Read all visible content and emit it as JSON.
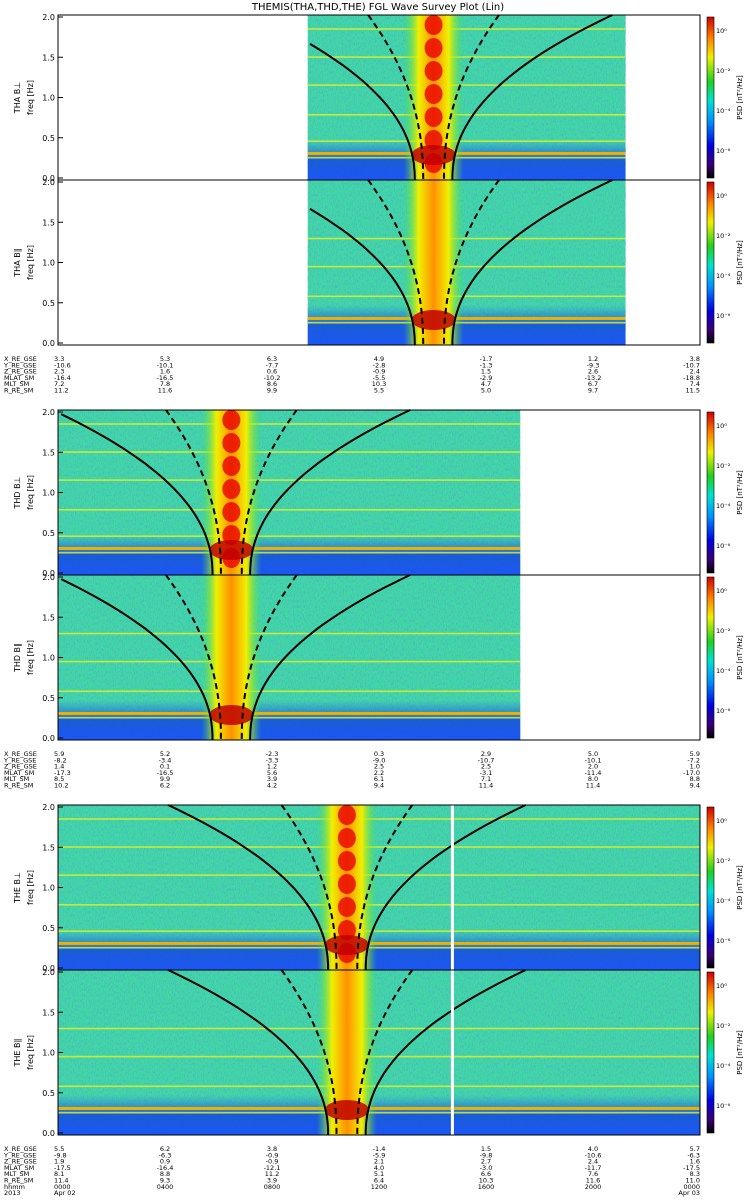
{
  "title": "THEMIS(THA,THD,THE) FGL Wave Survey Plot (Lin)",
  "colorbar": {
    "label": "PSD [nT²/Hz]",
    "tick_labels": [
      "10⁰",
      "10⁻²",
      "10⁻⁴",
      "10⁻⁶"
    ]
  },
  "chart_data": [
    {
      "type": "heatmap",
      "probe": "THA",
      "panels": [
        {
          "ylabel": "THA B⊥",
          "ylabel2": "freq [Hz]",
          "data_start_frac": 0.389,
          "data_end_frac": 0.884
        },
        {
          "ylabel": "THA B∥",
          "ylabel2": "freq [Hz]",
          "data_start_frac": 0.389,
          "data_end_frac": 0.884
        }
      ],
      "y_ticks": [
        "0.0",
        "0.5",
        "1.0",
        "1.5",
        "2.0"
      ],
      "ylim": [
        0,
        2
      ],
      "ephemeris": {
        "labels": [
          "X_RE_GSE",
          "Y_RE_GSE",
          "Z_RE_GSE",
          "MLAT_SM",
          "MLT_SM",
          "R_RE_SM"
        ],
        "columns": [
          [
            "3.3",
            "-10.6",
            "2.3",
            "-16.4",
            "7.2",
            "11.2"
          ],
          [
            "5.3",
            "-10.1",
            "1.6",
            "-16.5",
            "7.8",
            "11.6"
          ],
          [
            "6.3",
            "-7.7",
            "0.6",
            "-10.2",
            "8.6",
            "9.9"
          ],
          [
            "4.9",
            "-2.8",
            "-0.9",
            "-5.5",
            "10.3",
            "5.5"
          ],
          [
            "-1.7",
            "-1.3",
            "1.5",
            "-2.9",
            "4.7",
            "5.0"
          ],
          [
            "1.2",
            "-9.3",
            "2.6",
            "-13.2",
            "6.7",
            "9.7"
          ],
          [
            "3.8",
            "-10.7",
            "2.4",
            "-18.8",
            "7.4",
            "11.5"
          ]
        ]
      }
    },
    {
      "type": "heatmap",
      "probe": "THD",
      "panels": [
        {
          "ylabel": "THD B⊥",
          "ylabel2": "freq [Hz]",
          "data_start_frac": 0.0,
          "data_end_frac": 0.72
        },
        {
          "ylabel": "THD B∥",
          "ylabel2": "freq [Hz]",
          "data_start_frac": 0.0,
          "data_end_frac": 0.72
        }
      ],
      "y_ticks": [
        "0.0",
        "0.5",
        "1.0",
        "1.5",
        "2.0"
      ],
      "ylim": [
        0,
        2
      ],
      "ephemeris": {
        "labels": [
          "X_RE_GSE",
          "Y_RE_GSE",
          "Z_RE_GSE",
          "MLAT_SM",
          "MLT_SM",
          "R_RE_SM"
        ],
        "columns": [
          [
            "5.9",
            "-8.2",
            "1.4",
            "-17.3",
            "8.5",
            "10.2"
          ],
          [
            "5.2",
            "-3.4",
            "0.1",
            "-16.5",
            "9.9",
            "6.2"
          ],
          [
            "-2.3",
            "-3.3",
            "1.2",
            "5.6",
            "3.9",
            "4.2"
          ],
          [
            "0.3",
            "-9.0",
            "2.5",
            "2.2",
            "6.1",
            "9.4"
          ],
          [
            "2.9",
            "-10.7",
            "2.5",
            "-3.1",
            "7.1",
            "11.4"
          ],
          [
            "5.0",
            "-10.1",
            "2.0",
            "-11.4",
            "8.0",
            "11.4"
          ],
          [
            "5.9",
            "-7.2",
            "1.0",
            "-17.0",
            "8.8",
            "9.4"
          ]
        ]
      }
    },
    {
      "type": "heatmap",
      "probe": "THE",
      "panels": [
        {
          "ylabel": "THE B⊥",
          "ylabel2": "freq [Hz]",
          "data_start_frac": 0.0,
          "data_end_frac": 1.0
        },
        {
          "ylabel": "THE B∥",
          "ylabel2": "freq [Hz]",
          "data_start_frac": 0.0,
          "data_end_frac": 1.0
        }
      ],
      "y_ticks": [
        "0.0",
        "0.5",
        "1.0",
        "1.5",
        "2.0"
      ],
      "ylim": [
        0,
        2
      ],
      "ephemeris": {
        "labels": [
          "X_RE_GSE",
          "Y_RE_GSE",
          "Z_RE_GSE",
          "MLAT_SM",
          "MLT_SM",
          "R_RE_SM",
          "hhmm",
          "2013"
        ],
        "columns": [
          [
            "5.5",
            "-9.8",
            "1.9",
            "-17.5",
            "8.1",
            "11.4",
            "0000",
            "Apr 02"
          ],
          [
            "6.2",
            "-6.3",
            "0.9",
            "-16.4",
            "8.8",
            "9.3",
            "0400",
            ""
          ],
          [
            "3.8",
            "-0.9",
            "-0.9",
            "-12.1",
            "11.2",
            "3.9",
            "0800",
            ""
          ],
          [
            "-1.4",
            "-5.9",
            "2.1",
            "4.0",
            "5.1",
            "6.4",
            "1200",
            ""
          ],
          [
            "1.5",
            "-9.8",
            "2.7",
            "-3.0",
            "6.6",
            "10.3",
            "1600",
            ""
          ],
          [
            "4.0",
            "-10.6",
            "2.4",
            "-11.7",
            "7.6",
            "11.6",
            "2000",
            ""
          ],
          [
            "5.7",
            "-6.3",
            "1.6",
            "-17.5",
            "8.3",
            "11.0",
            "0000",
            "Apr 03"
          ]
        ]
      }
    }
  ]
}
